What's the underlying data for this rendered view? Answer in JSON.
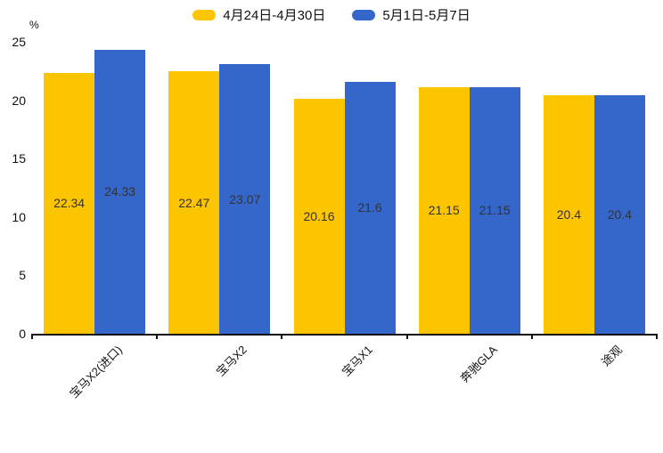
{
  "chart_data": {
    "type": "bar",
    "title": "",
    "xlabel": "",
    "ylabel": "%",
    "categories": [
      "宝马X2(进口)",
      "宝马X2",
      "宝马X1",
      "奔驰GLA",
      "途观"
    ],
    "series": [
      {
        "name": "4月24日-4月30日",
        "color": "#FDC500",
        "values": [
          22.34,
          22.47,
          20.16,
          21.15,
          20.4
        ]
      },
      {
        "name": "5月1日-5月7日",
        "color": "#3566C9",
        "values": [
          24.33,
          23.07,
          21.6,
          21.15,
          20.4
        ]
      }
    ],
    "data_labels": [
      [
        "22.34",
        "22.47",
        "20.16",
        "21.15",
        "20.4"
      ],
      [
        "24.33",
        "23.07",
        "21.6",
        "21.15",
        "20.4"
      ]
    ],
    "ylim": [
      0,
      25
    ],
    "yticks": [
      "0",
      "5",
      "10",
      "15",
      "20",
      "25"
    ],
    "grid": false,
    "legend_position": "top",
    "axis_color": "#111111",
    "label_color": "#333333"
  }
}
